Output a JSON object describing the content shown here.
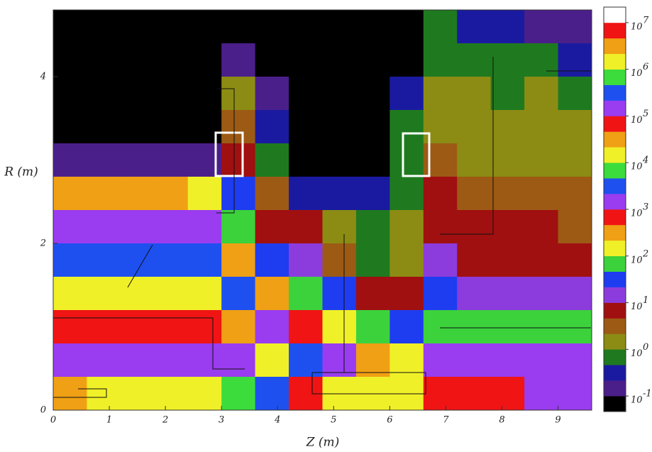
{
  "chart_data": {
    "type": "heatmap",
    "xlabel": "Z (m)",
    "ylabel": "R (m)",
    "xlim": [
      0,
      9.6
    ],
    "ylim": [
      0,
      4.8
    ],
    "xticks": [
      0,
      1,
      2,
      3,
      4,
      5,
      6,
      7,
      8,
      9
    ],
    "yticks": [
      0,
      2,
      4
    ],
    "x": [
      0.3,
      0.9,
      1.5,
      2.1,
      2.7,
      3.3,
      3.9,
      4.5,
      5.1,
      5.7,
      6.3,
      6.9,
      7.5,
      8.1,
      8.7,
      9.3
    ],
    "y": [
      4.6,
      4.2,
      3.8,
      3.4,
      3.0,
      2.6,
      2.2,
      1.8,
      1.4,
      1.0,
      0.6,
      0.2
    ],
    "z": [
      [
        -1.5,
        -1.5,
        -1.5,
        -1.5,
        -1.4,
        -1.1,
        -1.4,
        -1.5,
        -1.5,
        -1.4,
        -1.2,
        -0.3,
        -0.5,
        -0.6,
        -0.7,
        -0.9
      ],
      [
        -1.5,
        -1.5,
        -1.5,
        -1.5,
        -1.5,
        -0.9,
        -1.2,
        -1.5,
        -1.5,
        -1.5,
        -1.0,
        0.0,
        -0.1,
        -0.2,
        -0.2,
        -0.4
      ],
      [
        -1.5,
        -1.5,
        -1.5,
        -1.5,
        -1.5,
        0.2,
        -0.9,
        -1.5,
        -1.5,
        -1.5,
        -0.5,
        0.2,
        0.1,
        0.0,
        0.1,
        0.0
      ],
      [
        -1.5,
        -1.5,
        -1.5,
        -1.5,
        -1.4,
        0.5,
        -0.6,
        -1.5,
        -1.5,
        -1.5,
        -0.2,
        0.3,
        0.2,
        0.2,
        0.2,
        0.1
      ],
      [
        -0.9,
        -0.9,
        -0.9,
        -0.9,
        -0.8,
        0.9,
        -0.2,
        -1.0,
        -1.2,
        -1.3,
        -0.1,
        0.4,
        0.3,
        0.3,
        0.3,
        0.2
      ],
      [
        2.4,
        2.4,
        2.4,
        2.4,
        2.3,
        1.4,
        0.6,
        -0.4,
        -0.5,
        -0.5,
        -0.1,
        0.7,
        0.6,
        0.6,
        0.5,
        0.4
      ],
      [
        3.1,
        3.1,
        3.1,
        3.1,
        3.0,
        1.8,
        1.0,
        0.7,
        0.2,
        -0.1,
        0.1,
        0.9,
        0.8,
        0.8,
        0.8,
        0.6
      ],
      [
        3.5,
        3.5,
        3.5,
        3.5,
        3.4,
        2.6,
        1.6,
        1.3,
        0.6,
        0.0,
        0.3,
        1.1,
        1.0,
        1.0,
        1.0,
        0.9
      ],
      [
        4.2,
        4.2,
        4.1,
        4.1,
        4.0,
        3.5,
        2.5,
        2.0,
        1.5,
        0.8,
        0.8,
        1.4,
        1.3,
        1.3,
        1.2,
        1.1
      ],
      [
        4.8,
        4.8,
        4.7,
        4.7,
        4.7,
        4.5,
        3.3,
        2.7,
        2.2,
        1.8,
        1.5,
        2.0,
        2.0,
        1.9,
        1.8,
        1.8
      ],
      [
        5.3,
        5.3,
        5.3,
        5.2,
        5.2,
        5.0,
        4.3,
        3.4,
        3.0,
        2.6,
        2.3,
        3.0,
        3.0,
        3.0,
        3.0,
        3.0
      ],
      [
        6.5,
        6.3,
        6.0,
        6.0,
        6.0,
        5.8,
        5.6,
        4.8,
        4.3,
        4.0,
        4.0,
        4.8,
        4.9,
        4.9,
        5.0,
        5.0
      ]
    ],
    "clim": [
      -1.333,
      7.333
    ],
    "colors": [
      "#000000",
      "#4b1f8a",
      "#1a1aa0",
      "#1f7a1f",
      "#8c8c14",
      "#9c5a14",
      "#a01010",
      "#8c3cdc",
      "#1e3cf0",
      "#3cd23c",
      "#f0f028",
      "#f0a014",
      "#f01414",
      "#9a3cf0",
      "#1e50f0",
      "#3cdc3c",
      "#f0f028",
      "#f0a014",
      "#f01414",
      "#9a3cf0",
      "#1e50f0",
      "#3cdc3c",
      "#f0f028",
      "#f0a014",
      "#f01414",
      "#ffffff"
    ],
    "colorbar_base": "10",
    "cticks": [
      -1,
      0,
      1,
      2,
      3,
      4,
      5,
      6,
      7
    ]
  }
}
